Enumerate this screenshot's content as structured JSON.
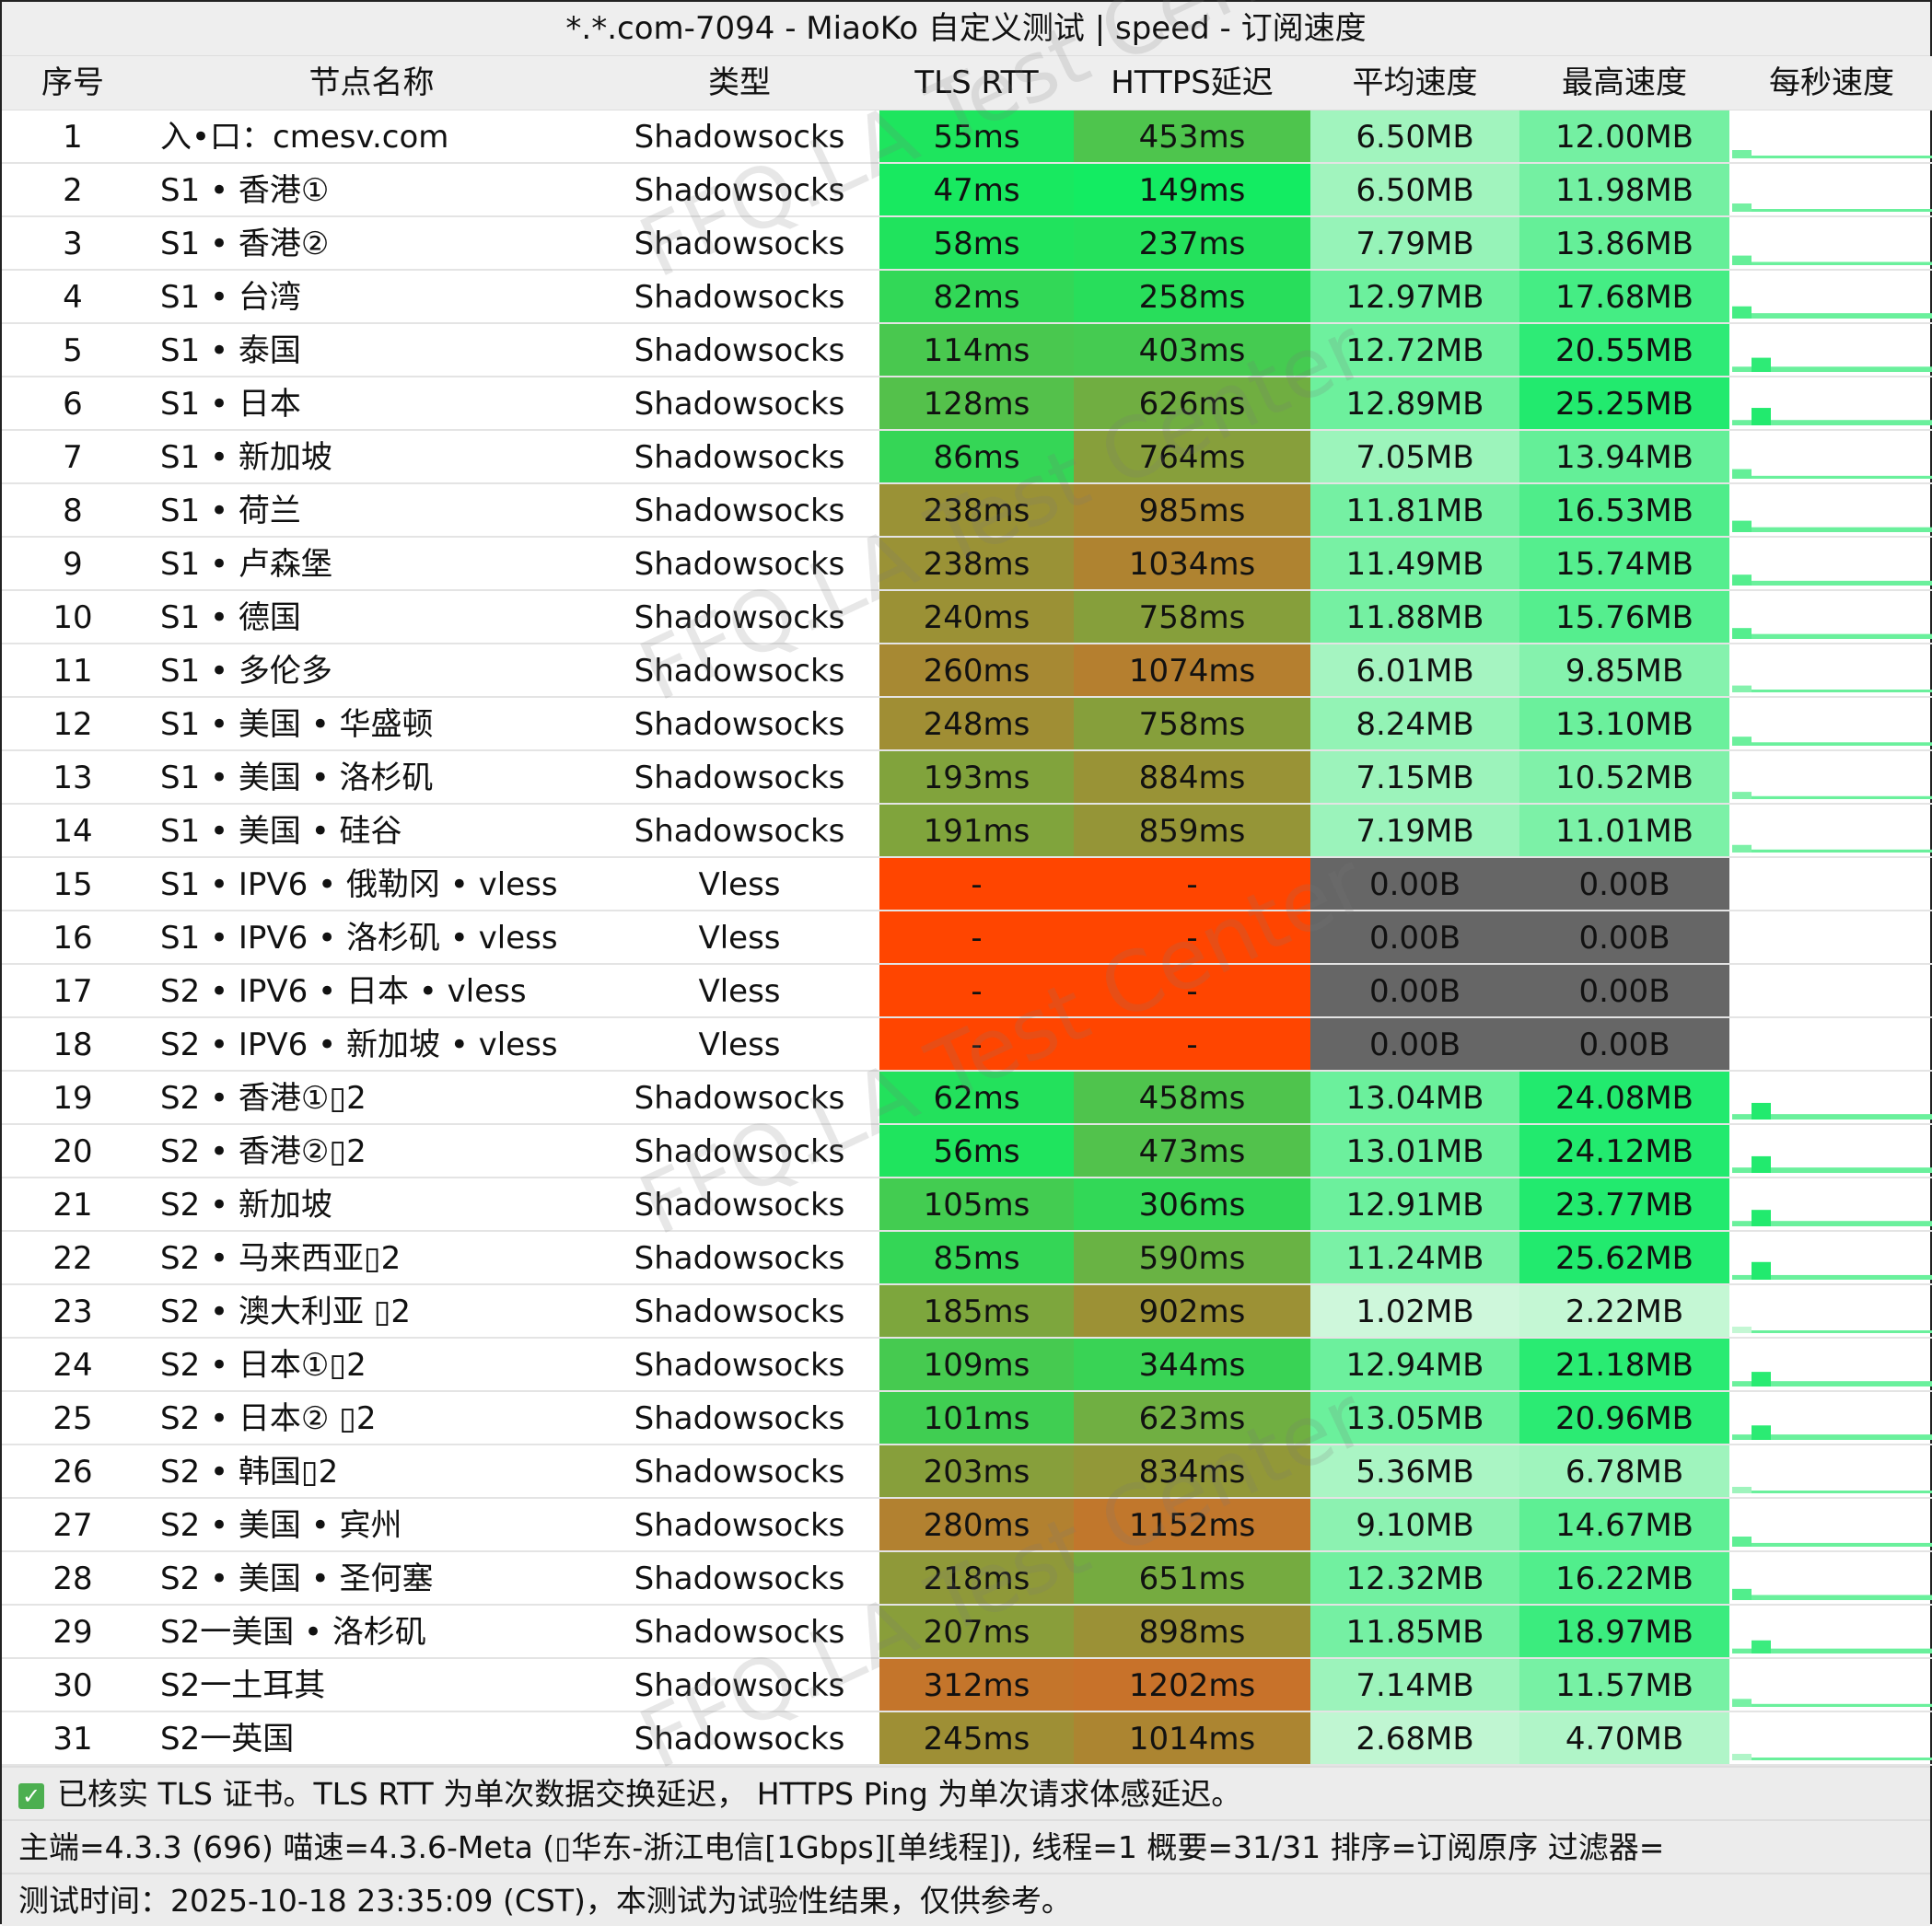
{
  "title": "*.*.com-7094 - MiaoKo 自定义测试 | speed - 订阅速度",
  "headers": [
    "序号",
    "节点名称",
    "类型",
    "TLS RTT",
    "HTTPS延迟",
    "平均速度",
    "最高速度",
    "每秒速度"
  ],
  "watermark": "FFQ.LA Test Center",
  "colors": {
    "failed_latency": "#ff4500",
    "zero_speed": "#666666",
    "tls_fast": "#13ec62",
    "latency_mid": "#7aa83e",
    "latency_slow": "#c8722a",
    "speed_high": "#22ea6e",
    "speed_low": "#d6f8e0"
  },
  "rows": [
    [
      "1",
      "入•口：cmesv.com",
      "Shadowsocks",
      "55ms",
      "453ms",
      "6.50MB",
      "12.00MB"
    ],
    [
      "2",
      "S1 • 香港①",
      "Shadowsocks",
      "47ms",
      "149ms",
      "6.50MB",
      "11.98MB"
    ],
    [
      "3",
      "S1 • 香港②",
      "Shadowsocks",
      "58ms",
      "237ms",
      "7.79MB",
      "13.86MB"
    ],
    [
      "4",
      "S1 • 台湾",
      "Shadowsocks",
      "82ms",
      "258ms",
      "12.97MB",
      "17.68MB"
    ],
    [
      "5",
      "S1 • 泰国",
      "Shadowsocks",
      "114ms",
      "403ms",
      "12.72MB",
      "20.55MB"
    ],
    [
      "6",
      "S1 • 日本",
      "Shadowsocks",
      "128ms",
      "626ms",
      "12.89MB",
      "25.25MB"
    ],
    [
      "7",
      "S1 • 新加坡",
      "Shadowsocks",
      "86ms",
      "764ms",
      "7.05MB",
      "13.94MB"
    ],
    [
      "8",
      "S1 • 荷兰",
      "Shadowsocks",
      "238ms",
      "985ms",
      "11.81MB",
      "16.53MB"
    ],
    [
      "9",
      "S1 • 卢森堡",
      "Shadowsocks",
      "238ms",
      "1034ms",
      "11.49MB",
      "15.74MB"
    ],
    [
      "10",
      "S1 • 德国",
      "Shadowsocks",
      "240ms",
      "758ms",
      "11.88MB",
      "15.76MB"
    ],
    [
      "11",
      "S1 • 多伦多",
      "Shadowsocks",
      "260ms",
      "1074ms",
      "6.01MB",
      "9.85MB"
    ],
    [
      "12",
      "S1 • 美国 • 华盛顿",
      "Shadowsocks",
      "248ms",
      "758ms",
      "8.24MB",
      "13.10MB"
    ],
    [
      "13",
      "S1 • 美国 • 洛杉矶",
      "Shadowsocks",
      "193ms",
      "884ms",
      "7.15MB",
      "10.52MB"
    ],
    [
      "14",
      "S1 • 美国 • 硅谷",
      "Shadowsocks",
      "191ms",
      "859ms",
      "7.19MB",
      "11.01MB"
    ],
    [
      "15",
      "S1 •  IPV6 • 俄勒冈 • vless",
      "Vless",
      "-",
      "-",
      "0.00B",
      "0.00B"
    ],
    [
      "16",
      "S1 •  IPV6 • 洛杉矶 • vless",
      "Vless",
      "-",
      "-",
      "0.00B",
      "0.00B"
    ],
    [
      "17",
      "S2 •  IPV6 • 日本 • vless",
      "Vless",
      "-",
      "-",
      "0.00B",
      "0.00B"
    ],
    [
      "18",
      "S2 •  IPV6 • 新加坡 • vless",
      "Vless",
      "-",
      "-",
      "0.00B",
      "0.00B"
    ],
    [
      "19",
      "S2 • 香港①▯2",
      "Shadowsocks",
      "62ms",
      "458ms",
      "13.04MB",
      "24.08MB"
    ],
    [
      "20",
      "S2 • 香港②▯2",
      "Shadowsocks",
      "56ms",
      "473ms",
      "13.01MB",
      "24.12MB"
    ],
    [
      "21",
      "S2 • 新加坡",
      "Shadowsocks",
      "105ms",
      "306ms",
      "12.91MB",
      "23.77MB"
    ],
    [
      "22",
      "S2 • 马来西亚▯2",
      "Shadowsocks",
      "85ms",
      "590ms",
      "11.24MB",
      "25.62MB"
    ],
    [
      "23",
      "S2 • 澳大利亚 ▯2",
      "Shadowsocks",
      "185ms",
      "902ms",
      "1.02MB",
      "2.22MB"
    ],
    [
      "24",
      "S2 • 日本①▯2",
      "Shadowsocks",
      "109ms",
      "344ms",
      "12.94MB",
      "21.18MB"
    ],
    [
      "25",
      "S2 • 日本② ▯2",
      "Shadowsocks",
      "101ms",
      "623ms",
      "13.05MB",
      "20.96MB"
    ],
    [
      "26",
      "S2 • 韩国▯2",
      "Shadowsocks",
      "203ms",
      "834ms",
      "5.36MB",
      "6.78MB"
    ],
    [
      "27",
      "S2 • 美国 • 宾州",
      "Shadowsocks",
      "280ms",
      "1152ms",
      "9.10MB",
      "14.67MB"
    ],
    [
      "28",
      "S2 • 美国 • 圣何塞",
      "Shadowsocks",
      "218ms",
      "651ms",
      "12.32MB",
      "16.22MB"
    ],
    [
      "29",
      "S2一美国 • 洛杉矶",
      "Shadowsocks",
      "207ms",
      "898ms",
      "11.85MB",
      "18.97MB"
    ],
    [
      "30",
      "S2一土耳其",
      "Shadowsocks",
      "312ms",
      "1202ms",
      "7.14MB",
      "11.57MB"
    ],
    [
      "31",
      "S2一英国",
      "Shadowsocks",
      "245ms",
      "1014ms",
      "2.68MB",
      "4.70MB"
    ]
  ],
  "footer": {
    "line1": "已核实 TLS 证书。TLS RTT 为单次数据交换延迟， HTTPS Ping 为单次请求体感延迟。",
    "line2": "主端=4.3.3 (696) 喵速=4.3.6-Meta (▯华东-浙江电信[1Gbps][单线程]), 线程=1 概要=31/31 排序=订阅原序 过滤器=",
    "line3": "测试时间：2025-10-18 23:35:09 (CST)，本测试为试验性结果，仅供参考。"
  }
}
